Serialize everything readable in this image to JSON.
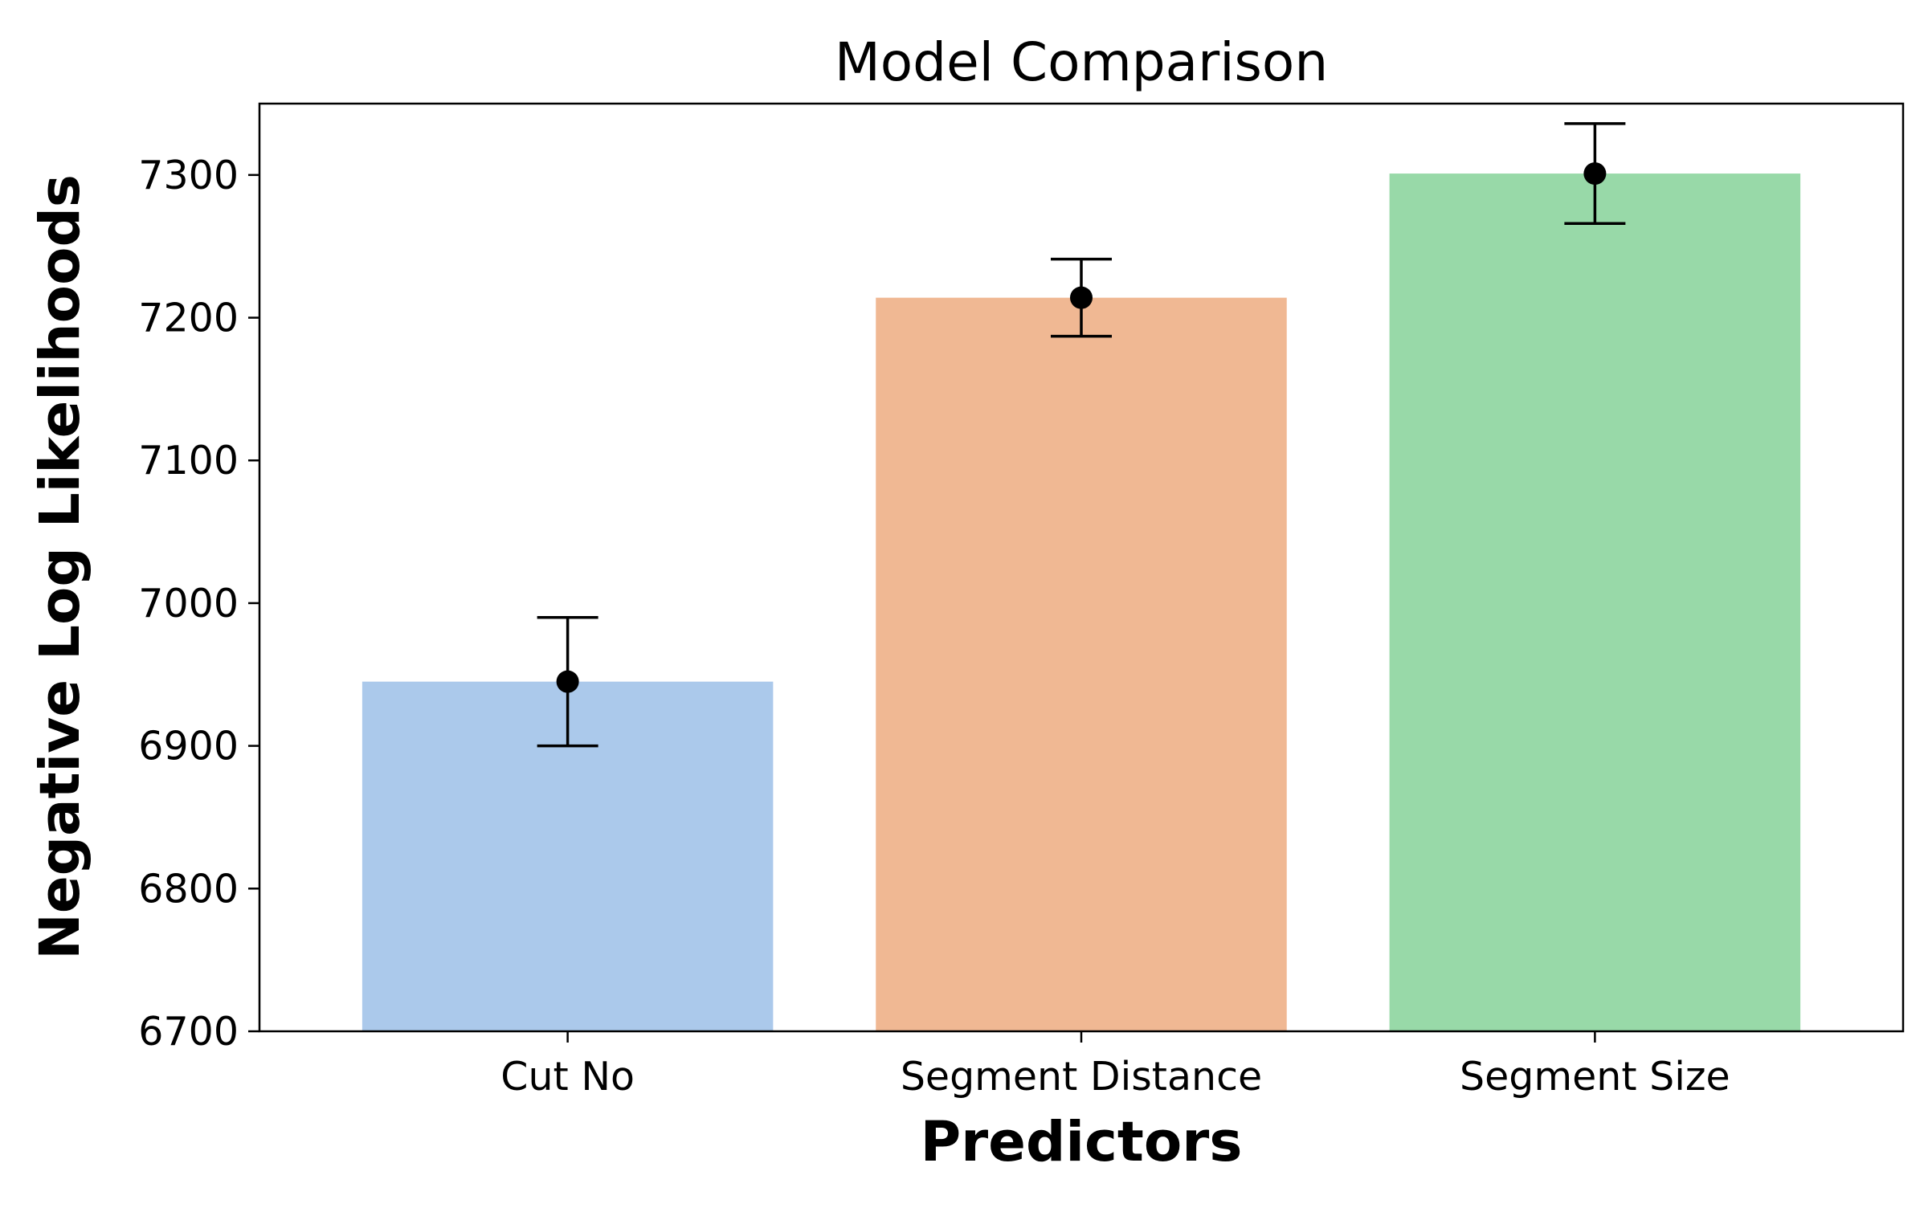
{
  "chart_data": {
    "type": "bar",
    "title": "Model Comparison",
    "xlabel": "Predictors",
    "ylabel": "Negative Log Likelihoods",
    "categories": [
      "Cut No",
      "Segment Distance",
      "Segment Size"
    ],
    "values": [
      6945,
      7214,
      7301
    ],
    "error": [
      45,
      27,
      35
    ],
    "ylim": [
      6700,
      7350
    ],
    "yticks": [
      "6700",
      "6800",
      "6900",
      "7000",
      "7100",
      "7200",
      "7300"
    ],
    "colors": [
      "#abc9eb",
      "#f0b893",
      "#98d9a8"
    ],
    "errorbar_color": "#000000",
    "grid": false
  }
}
